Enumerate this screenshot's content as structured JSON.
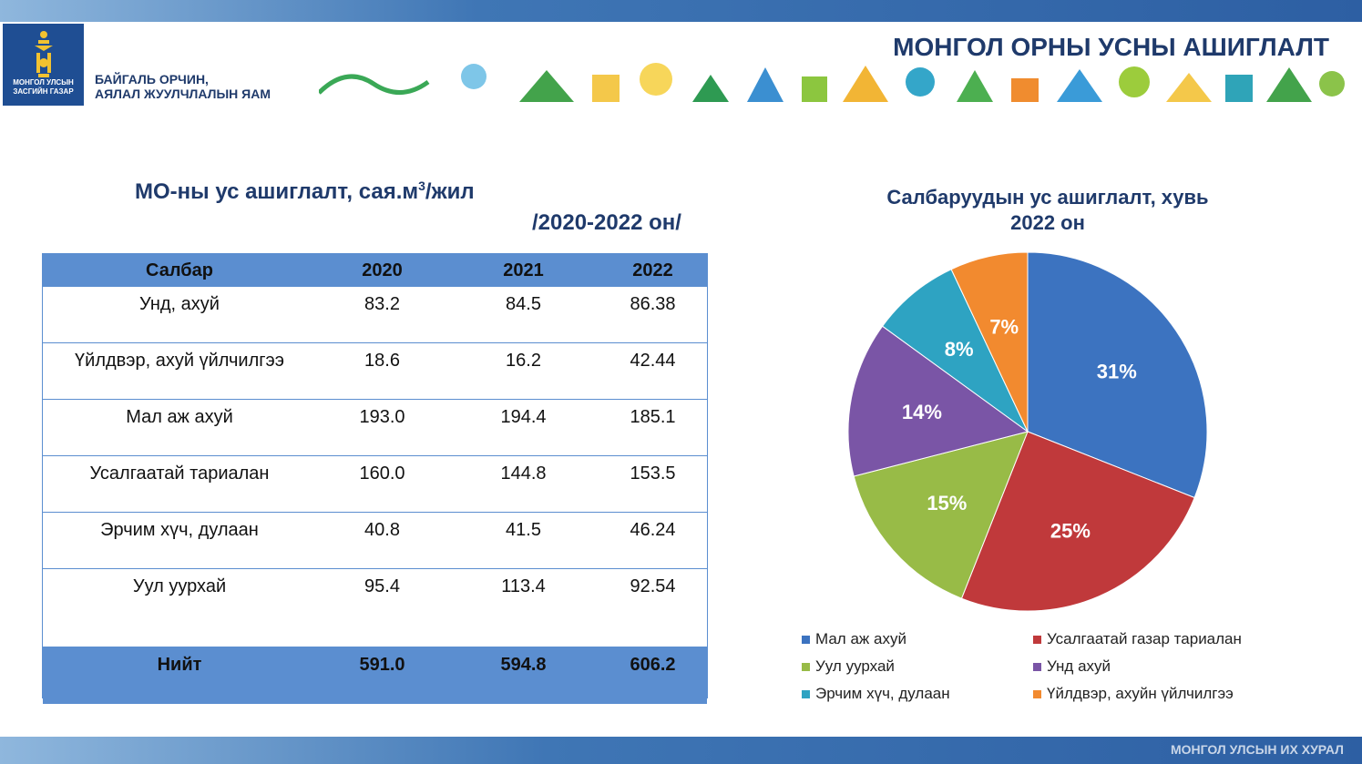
{
  "header": {
    "title": "МОНГОЛ ОРНЫ  УСНЫ АШИГЛАЛТ",
    "logo_text": [
      "МОНГОЛ УЛСЫН",
      "ЗАСГИЙН ГАЗАР"
    ],
    "ministry": [
      "БАЙГАЛЬ ОРЧИН,",
      "АЯЛАЛ ЖУУЛЧЛАЛЫН ЯАМ"
    ]
  },
  "footer": {
    "text": "МОНГОЛ УЛСЫН ИХ ХУРАЛ"
  },
  "table": {
    "title_main": "МО-ны ус ашиглалт, сая.м",
    "title_sup": "3",
    "title_tail": "/жил",
    "subtitle": "/2020-2022 он/",
    "columns": [
      "Салбар",
      "2020",
      "2021",
      "2022"
    ],
    "rows": [
      [
        "Унд, ахуй",
        "83.2",
        "84.5",
        "86.38"
      ],
      [
        "Үйлдвэр, ахуй үйлчилгээ",
        "18.6",
        "16.2",
        "42.44"
      ],
      [
        "Мал аж ахуй",
        "193.0",
        "194.4",
        "185.1"
      ],
      [
        "Усалгаатай тариалан",
        "160.0",
        "144.8",
        "153.5"
      ],
      [
        "Эрчим хүч, дулаан",
        "40.8",
        "41.5",
        "46.24"
      ],
      [
        "Уул уурхай",
        "95.4",
        "113.4",
        "92.54"
      ]
    ],
    "total": [
      "Нийт",
      "591.0",
      "594.8",
      "606.2"
    ]
  },
  "chart_data": {
    "type": "pie",
    "title": "Салбаруудын ус ашиглалт, хувь",
    "subtitle": "2022 он",
    "categories": [
      "Мал аж ахуй",
      "Усалгаатай газар тариалан",
      "Уул уурхай",
      "Унд ахуй",
      "Эрчим хүч, дулаан",
      "Үйлдвэр, ахуйн үйлчилгээ"
    ],
    "values": [
      31,
      25,
      15,
      14,
      8,
      7
    ],
    "labels": [
      "31%",
      "25%",
      "15%",
      "14%",
      "8%",
      "7%"
    ],
    "colors": [
      "#3c73c0",
      "#c0393b",
      "#98bb47",
      "#7a55a6",
      "#2ea3c2",
      "#f28a2f"
    ],
    "legend": "bottom"
  }
}
